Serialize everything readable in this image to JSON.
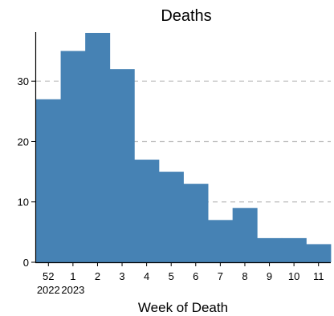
{
  "chart_data": {
    "type": "bar",
    "title": "Deaths",
    "xlabel": "Week of Death",
    "ylabel": "",
    "categories": [
      "52",
      "1",
      "2",
      "3",
      "4",
      "5",
      "6",
      "7",
      "8",
      "9",
      "10",
      "11"
    ],
    "year_labels": [
      {
        "category_index": 0,
        "label": "2022"
      },
      {
        "category_index": 1,
        "label": "2023"
      }
    ],
    "values": [
      27,
      35,
      38,
      32,
      17,
      15,
      13,
      7,
      9,
      4,
      4,
      3
    ],
    "ylim": [
      0,
      38
    ],
    "yticks": [
      0,
      10,
      20,
      30
    ],
    "grid": "horizontal-dashed",
    "bar_color": "#4682b4",
    "grid_color": "#bdbdbd",
    "legend": "none"
  }
}
